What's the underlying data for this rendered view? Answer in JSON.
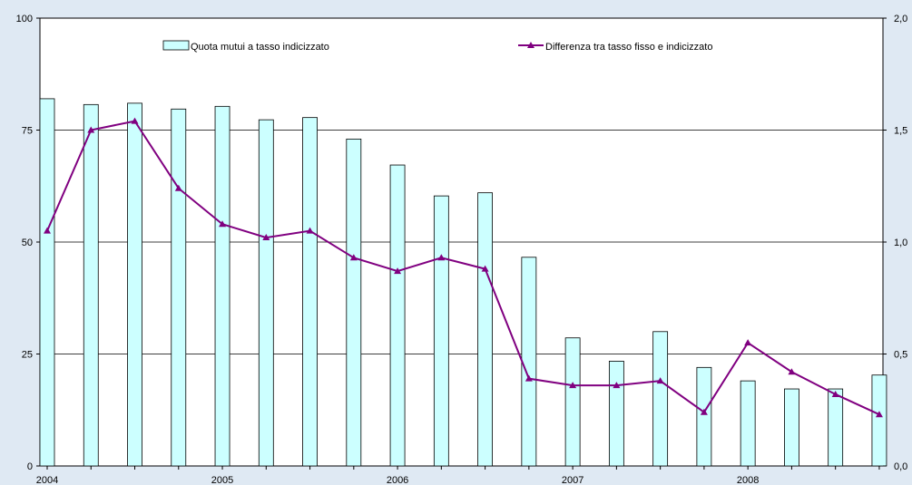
{
  "chart_data": {
    "type": "bar+line",
    "x_labels": [
      "2004",
      "2005",
      "2006",
      "2007",
      "2008"
    ],
    "periods": [
      "2004-Q1",
      "2004-Q2",
      "2004-Q3",
      "2004-Q4",
      "2005-Q1",
      "2005-Q2",
      "2005-Q3",
      "2005-Q4",
      "2006-Q1",
      "2006-Q2",
      "2006-Q3",
      "2006-Q4",
      "2007-Q1",
      "2007-Q2",
      "2007-Q3",
      "2007-Q4",
      "2008-Q1",
      "2008-Q2",
      "2008-Q3",
      "2008-Q4"
    ],
    "series": [
      {
        "name": "Quota mutui a tasso indicizzato",
        "kind": "bar",
        "axis": "left",
        "color": "#ccffff",
        "values": [
          82,
          80.7,
          81,
          79.7,
          80.3,
          77.3,
          77.8,
          73,
          67.2,
          60.3,
          61,
          46.6,
          28.6,
          23.4,
          30,
          22,
          19,
          17.2,
          17.2,
          20.3
        ]
      },
      {
        "name": "Differenza tra tasso fisso e indicizzato",
        "kind": "line",
        "axis": "right",
        "color": "#800080",
        "values": [
          1.05,
          1.5,
          1.54,
          1.24,
          1.08,
          1.02,
          1.05,
          0.93,
          0.87,
          0.93,
          0.88,
          0.39,
          0.36,
          0.36,
          0.38,
          0.24,
          0.55,
          0.42,
          0.32,
          0.23
        ]
      }
    ],
    "y_left": {
      "min": 0,
      "max": 100,
      "ticks": [
        "0",
        "25",
        "50",
        "75",
        "100"
      ]
    },
    "y_right": {
      "min": 0,
      "max": 2,
      "ticks": [
        "0,0",
        "0,5",
        "1,0",
        "1,5",
        "2,0"
      ]
    },
    "grid": true,
    "legend_position": "top"
  }
}
